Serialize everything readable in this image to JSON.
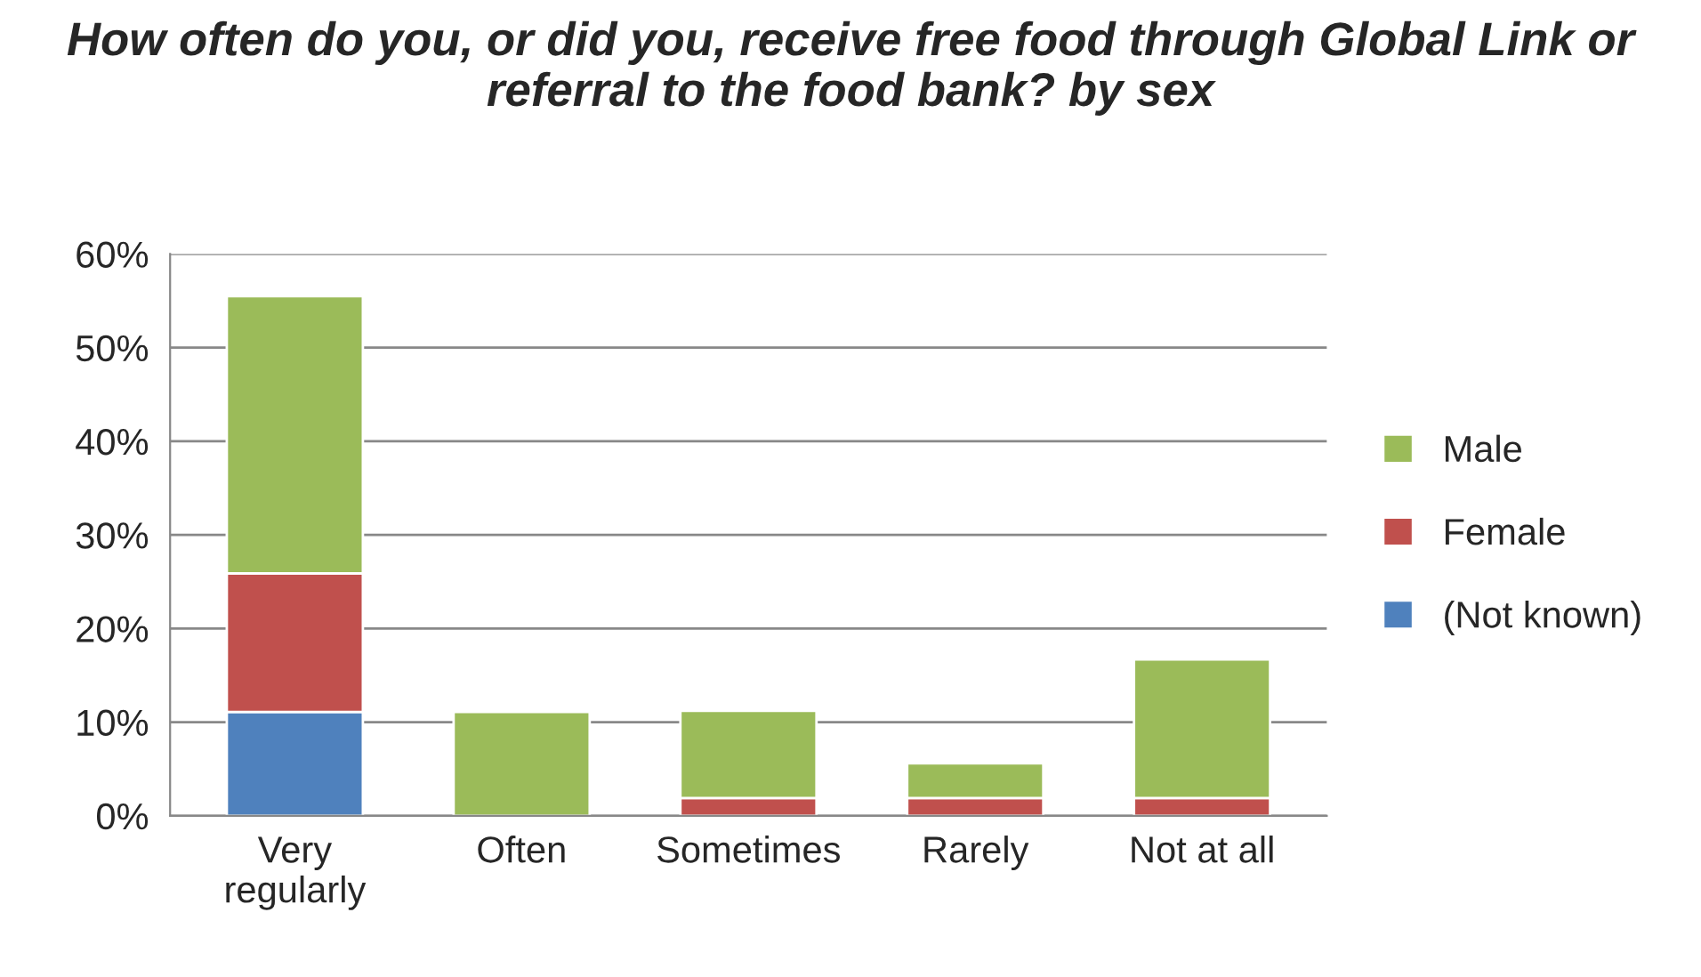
{
  "chart_data": {
    "type": "bar",
    "title": "How often do you, or did you, receive free food through Global Link or referral to the food bank? by sex",
    "categories": [
      "Very\nregularly",
      "Often",
      "Sometimes",
      "Rarely",
      "Not at all"
    ],
    "stacked": true,
    "series": [
      {
        "name": "(Not known)",
        "color": "#4f81bd",
        "values": [
          11.1,
          0,
          0,
          0,
          0
        ]
      },
      {
        "name": "Female",
        "color": "#c0504d",
        "values": [
          14.8,
          0,
          1.9,
          1.9,
          1.9
        ]
      },
      {
        "name": "Male",
        "color": "#9bbb59",
        "values": [
          29.6,
          11.1,
          9.3,
          3.7,
          14.8
        ]
      }
    ],
    "ylim": [
      0,
      60
    ],
    "yticks": [
      {
        "value": 0,
        "label": "0%"
      },
      {
        "value": 10,
        "label": "10%"
      },
      {
        "value": 20,
        "label": "20%"
      },
      {
        "value": 30,
        "label": "30%"
      },
      {
        "value": 40,
        "label": "40%"
      },
      {
        "value": 50,
        "label": "50%"
      },
      {
        "value": 60,
        "label": "60%"
      }
    ],
    "grid": "y",
    "legend": "right"
  }
}
